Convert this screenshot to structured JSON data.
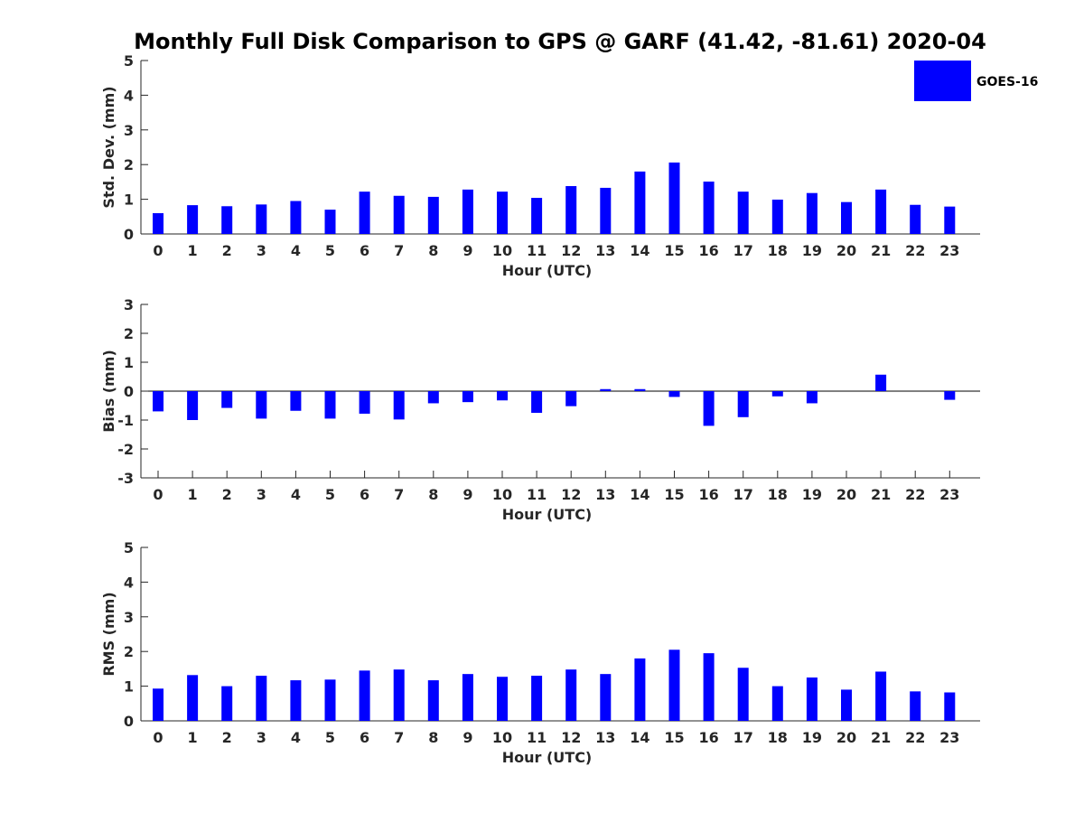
{
  "title": "Monthly Full Disk Comparison to GPS @ GARF (41.42, -81.61) 2020-04",
  "legend": {
    "label": "GOES-16",
    "color": "#0000ff",
    "position": "top-right"
  },
  "chart_data": [
    {
      "type": "bar",
      "xlabel": "Hour (UTC)",
      "ylabel": "Std. Dev. (mm)",
      "ylim": [
        0,
        5
      ],
      "yticks": [
        0,
        1,
        2,
        3,
        4,
        5
      ],
      "categories": [
        "0",
        "1",
        "2",
        "3",
        "4",
        "5",
        "6",
        "7",
        "8",
        "9",
        "10",
        "11",
        "12",
        "13",
        "14",
        "15",
        "16",
        "17",
        "18",
        "19",
        "20",
        "21",
        "22",
        "23"
      ],
      "series": [
        {
          "name": "GOES-16",
          "color": "#0000ff",
          "values": [
            0.6,
            0.83,
            0.8,
            0.85,
            0.95,
            0.7,
            1.22,
            1.1,
            1.07,
            1.28,
            1.22,
            1.04,
            1.38,
            1.33,
            1.8,
            2.06,
            1.51,
            1.22,
            0.99,
            1.18,
            0.92,
            1.28,
            0.84,
            0.79
          ]
        }
      ],
      "grid": false
    },
    {
      "type": "bar",
      "xlabel": "Hour (UTC)",
      "ylabel": "Bias (mm)",
      "ylim": [
        -3,
        3
      ],
      "yticks": [
        -3,
        -2,
        -1,
        0,
        1,
        2,
        3
      ],
      "categories": [
        "0",
        "1",
        "2",
        "3",
        "4",
        "5",
        "6",
        "7",
        "8",
        "9",
        "10",
        "11",
        "12",
        "13",
        "14",
        "15",
        "16",
        "17",
        "18",
        "19",
        "20",
        "21",
        "22",
        "23"
      ],
      "series": [
        {
          "name": "GOES-16",
          "color": "#0000ff",
          "values": [
            -0.7,
            -1.0,
            -0.58,
            -0.95,
            -0.68,
            -0.95,
            -0.78,
            -0.98,
            -0.42,
            -0.38,
            -0.32,
            -0.75,
            -0.52,
            0.07,
            0.07,
            -0.2,
            -1.2,
            -0.9,
            -0.18,
            -0.42,
            0.0,
            0.57,
            0.0,
            -0.3
          ]
        }
      ],
      "grid": false
    },
    {
      "type": "bar",
      "xlabel": "Hour (UTC)",
      "ylabel": "RMS (mm)",
      "ylim": [
        0,
        5
      ],
      "yticks": [
        0,
        1,
        2,
        3,
        4,
        5
      ],
      "categories": [
        "0",
        "1",
        "2",
        "3",
        "4",
        "5",
        "6",
        "7",
        "8",
        "9",
        "10",
        "11",
        "12",
        "13",
        "14",
        "15",
        "16",
        "17",
        "18",
        "19",
        "20",
        "21",
        "22",
        "23"
      ],
      "series": [
        {
          "name": "GOES-16",
          "color": "#0000ff",
          "values": [
            0.93,
            1.32,
            1.0,
            1.3,
            1.17,
            1.19,
            1.45,
            1.48,
            1.17,
            1.35,
            1.27,
            1.3,
            1.48,
            1.35,
            1.8,
            2.05,
            1.95,
            1.53,
            1.0,
            1.25,
            0.9,
            1.42,
            0.85,
            0.82
          ]
        }
      ],
      "grid": false
    }
  ]
}
